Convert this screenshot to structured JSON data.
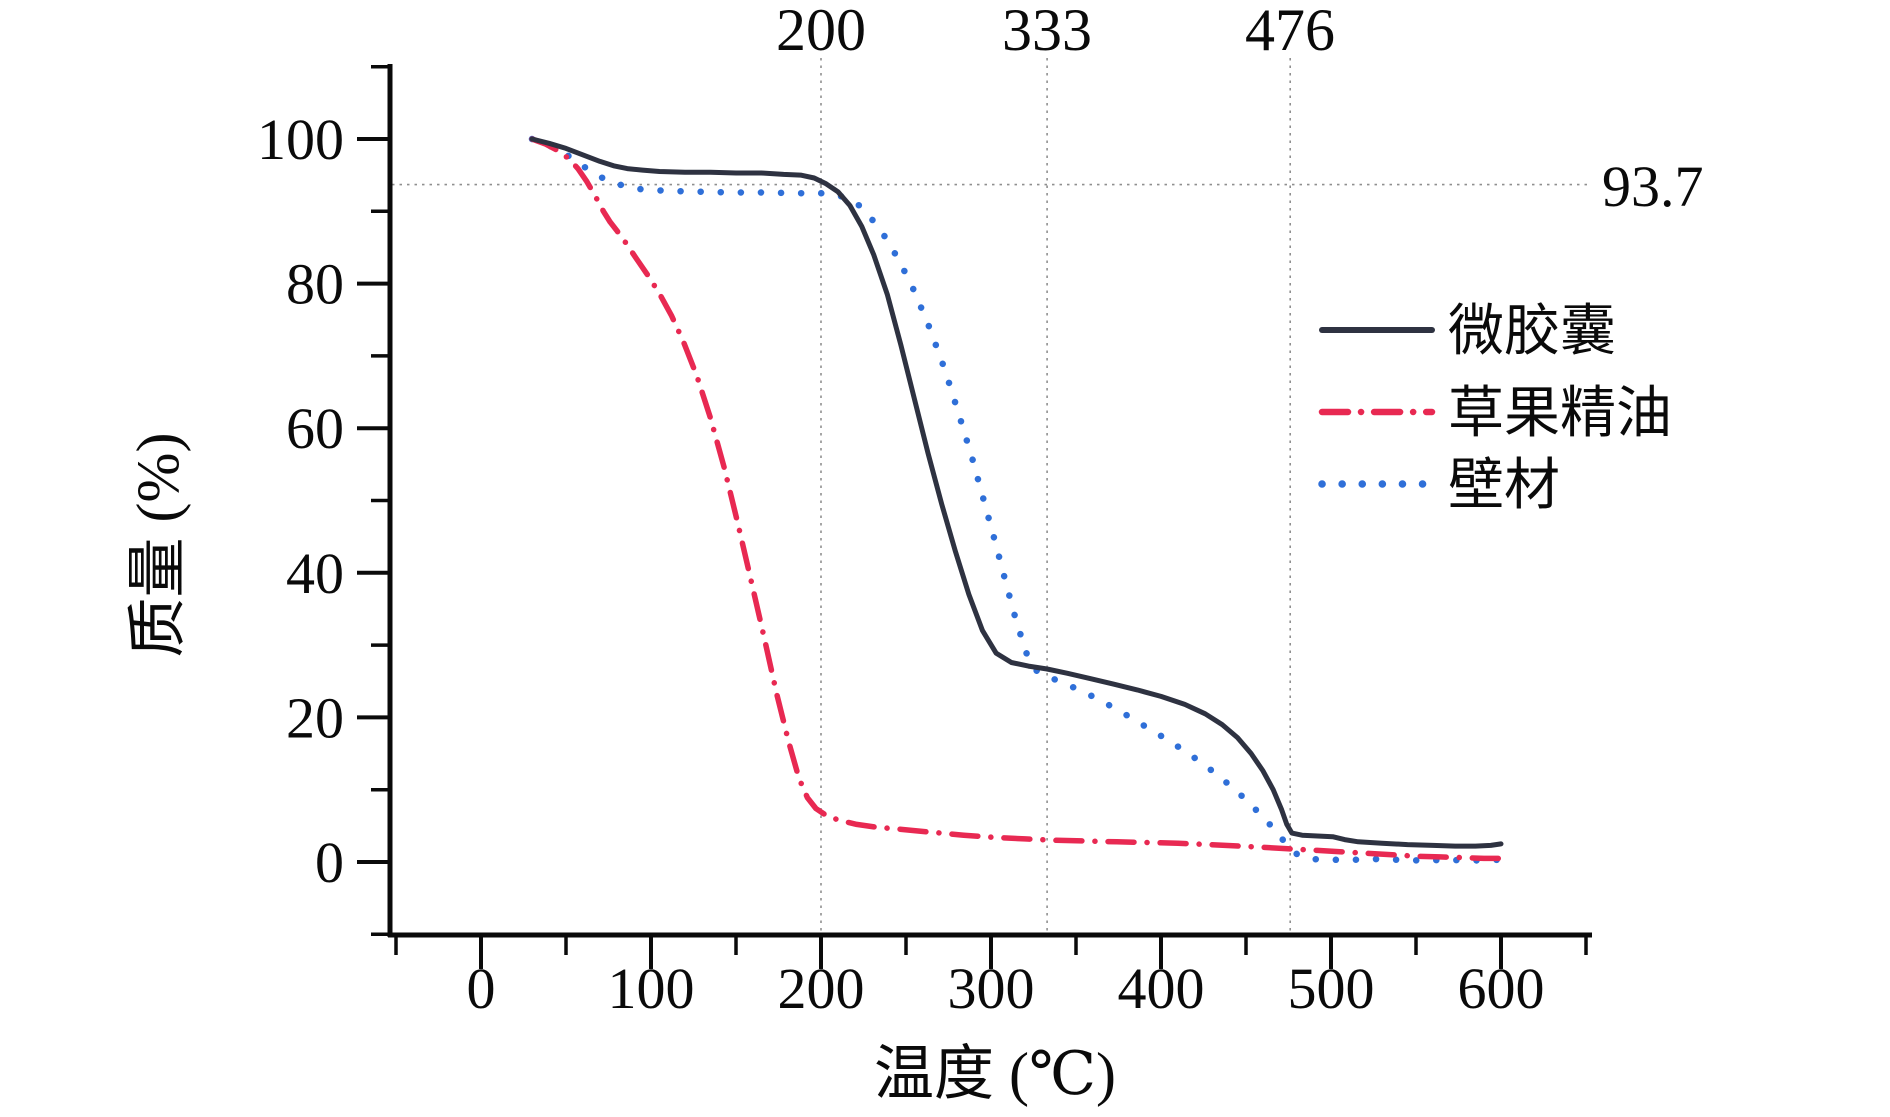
{
  "figure": {
    "background": "#ffffff",
    "axis_color": "#0a0a0a",
    "reference_line_color": "#8f8f8f"
  },
  "chart_data": {
    "type": "line",
    "title": "",
    "xlabel": "温度 (℃)",
    "ylabel": "质量 (%)",
    "xlim": [
      -53,
      653
    ],
    "ylim": [
      -10,
      110
    ],
    "x_ticks": [
      0,
      100,
      200,
      300,
      400,
      500,
      600
    ],
    "y_ticks": [
      0,
      20,
      40,
      60,
      80,
      100
    ],
    "x_minor_step": 50,
    "y_minor_step": 10,
    "grid": "off",
    "legend_position": "right-middle",
    "annotations": {
      "top_markers": [
        "200",
        "333",
        "476"
      ],
      "residual_label": "93.7"
    },
    "reference_lines": {
      "vertical_x": [
        200,
        333,
        476
      ],
      "horizontal_y": [
        93.7
      ]
    },
    "series": [
      {
        "name": "微胶囊",
        "style": "solid",
        "color": "#2e3241",
        "points": [
          [
            30,
            100
          ],
          [
            40,
            99.4
          ],
          [
            50,
            98.7
          ],
          [
            60,
            97.8
          ],
          [
            70,
            96.9
          ],
          [
            78,
            96.3
          ],
          [
            86,
            95.9
          ],
          [
            95,
            95.7
          ],
          [
            105,
            95.5
          ],
          [
            120,
            95.4
          ],
          [
            135,
            95.4
          ],
          [
            150,
            95.3
          ],
          [
            165,
            95.3
          ],
          [
            178,
            95.1
          ],
          [
            188,
            95.0
          ],
          [
            196,
            94.6
          ],
          [
            203,
            93.8
          ],
          [
            210,
            92.7
          ],
          [
            217,
            90.8
          ],
          [
            224,
            87.9
          ],
          [
            231,
            84.0
          ],
          [
            239,
            78.5
          ],
          [
            247,
            71.5
          ],
          [
            255,
            64.0
          ],
          [
            263,
            56.5
          ],
          [
            271,
            49.5
          ],
          [
            279,
            43.0
          ],
          [
            287,
            37.0
          ],
          [
            295,
            32.0
          ],
          [
            303,
            28.9
          ],
          [
            312,
            27.6
          ],
          [
            322,
            27.1
          ],
          [
            333,
            26.7
          ],
          [
            345,
            26.1
          ],
          [
            358,
            25.4
          ],
          [
            372,
            24.6
          ],
          [
            386,
            23.8
          ],
          [
            400,
            22.9
          ],
          [
            414,
            21.8
          ],
          [
            426,
            20.5
          ],
          [
            436,
            19.0
          ],
          [
            445,
            17.2
          ],
          [
            453,
            15.0
          ],
          [
            460,
            12.6
          ],
          [
            466,
            10.0
          ],
          [
            471,
            7.2
          ],
          [
            474,
            5.2
          ],
          [
            477,
            4.0
          ],
          [
            483,
            3.7
          ],
          [
            492,
            3.6
          ],
          [
            501,
            3.5
          ],
          [
            508,
            3.1
          ],
          [
            516,
            2.8
          ],
          [
            530,
            2.6
          ],
          [
            545,
            2.4
          ],
          [
            560,
            2.3
          ],
          [
            573,
            2.2
          ],
          [
            585,
            2.2
          ],
          [
            594,
            2.3
          ],
          [
            600,
            2.5
          ]
        ]
      },
      {
        "name": "草果精油",
        "style": "dash-dot",
        "color": "#e82952",
        "points": [
          [
            30,
            100
          ],
          [
            38,
            99.3
          ],
          [
            46,
            98.3
          ],
          [
            52,
            97.2
          ],
          [
            57,
            95.9
          ],
          [
            62,
            94.2
          ],
          [
            67,
            92.2
          ],
          [
            72,
            90.0
          ],
          [
            76,
            88.5
          ],
          [
            80,
            87.3
          ],
          [
            85,
            85.7
          ],
          [
            91,
            83.6
          ],
          [
            98,
            81.2
          ],
          [
            105,
            78.6
          ],
          [
            112,
            75.6
          ],
          [
            119,
            72.0
          ],
          [
            127,
            67.2
          ],
          [
            135,
            61.4
          ],
          [
            143,
            54.6
          ],
          [
            151,
            46.9
          ],
          [
            159,
            38.8
          ],
          [
            167,
            30.6
          ],
          [
            174,
            23.2
          ],
          [
            181,
            16.6
          ],
          [
            187,
            11.6
          ],
          [
            192,
            8.9
          ],
          [
            197,
            7.4
          ],
          [
            204,
            6.3
          ],
          [
            212,
            5.7
          ],
          [
            221,
            5.2
          ],
          [
            233,
            4.8
          ],
          [
            248,
            4.5
          ],
          [
            266,
            4.1
          ],
          [
            284,
            3.7
          ],
          [
            302,
            3.4
          ],
          [
            320,
            3.2
          ],
          [
            338,
            3.0
          ],
          [
            356,
            2.9
          ],
          [
            374,
            2.8
          ],
          [
            392,
            2.7
          ],
          [
            410,
            2.6
          ],
          [
            428,
            2.4
          ],
          [
            446,
            2.2
          ],
          [
            462,
            2.0
          ],
          [
            477,
            1.8
          ],
          [
            492,
            1.6
          ],
          [
            507,
            1.4
          ],
          [
            521,
            1.2
          ],
          [
            536,
            1.0
          ],
          [
            550,
            0.8
          ],
          [
            564,
            0.7
          ],
          [
            578,
            0.6
          ],
          [
            590,
            0.5
          ],
          [
            600,
            0.5
          ]
        ]
      },
      {
        "name": "壁材",
        "style": "dotted",
        "color": "#2f6fd8",
        "points": [
          [
            30,
            100
          ],
          [
            40,
            99.1
          ],
          [
            50,
            97.9
          ],
          [
            58,
            96.6
          ],
          [
            66,
            95.3
          ],
          [
            74,
            94.3
          ],
          [
            83,
            93.6
          ],
          [
            92,
            93.1
          ],
          [
            102,
            92.9
          ],
          [
            115,
            92.8
          ],
          [
            130,
            92.7
          ],
          [
            148,
            92.6
          ],
          [
            166,
            92.6
          ],
          [
            184,
            92.5
          ],
          [
            200,
            92.5
          ],
          [
            208,
            92.3
          ],
          [
            215,
            91.9
          ],
          [
            222,
            90.9
          ],
          [
            229,
            89.2
          ],
          [
            237,
            86.7
          ],
          [
            246,
            83.2
          ],
          [
            255,
            78.9
          ],
          [
            264,
            73.8
          ],
          [
            273,
            68.0
          ],
          [
            281,
            62.0
          ],
          [
            289,
            55.8
          ],
          [
            296,
            49.8
          ],
          [
            303,
            43.8
          ],
          [
            309,
            38.4
          ],
          [
            315,
            33.2
          ],
          [
            321,
            28.8
          ],
          [
            327,
            26.4
          ],
          [
            334,
            25.6
          ],
          [
            342,
            24.8
          ],
          [
            352,
            23.8
          ],
          [
            364,
            22.4
          ],
          [
            377,
            20.7
          ],
          [
            389,
            19.0
          ],
          [
            401,
            17.3
          ],
          [
            413,
            15.5
          ],
          [
            424,
            13.7
          ],
          [
            434,
            11.9
          ],
          [
            443,
            10.1
          ],
          [
            451,
            8.4
          ],
          [
            458,
            6.7
          ],
          [
            464,
            5.2
          ],
          [
            470,
            3.6
          ],
          [
            475,
            2.0
          ],
          [
            481,
            0.9
          ],
          [
            489,
            0.4
          ],
          [
            500,
            0.3
          ],
          [
            513,
            0.3
          ],
          [
            526,
            0.4
          ],
          [
            540,
            0.3
          ],
          [
            554,
            0.2
          ],
          [
            568,
            0.3
          ],
          [
            582,
            0.2
          ],
          [
            600,
            0.3
          ]
        ]
      }
    ]
  }
}
